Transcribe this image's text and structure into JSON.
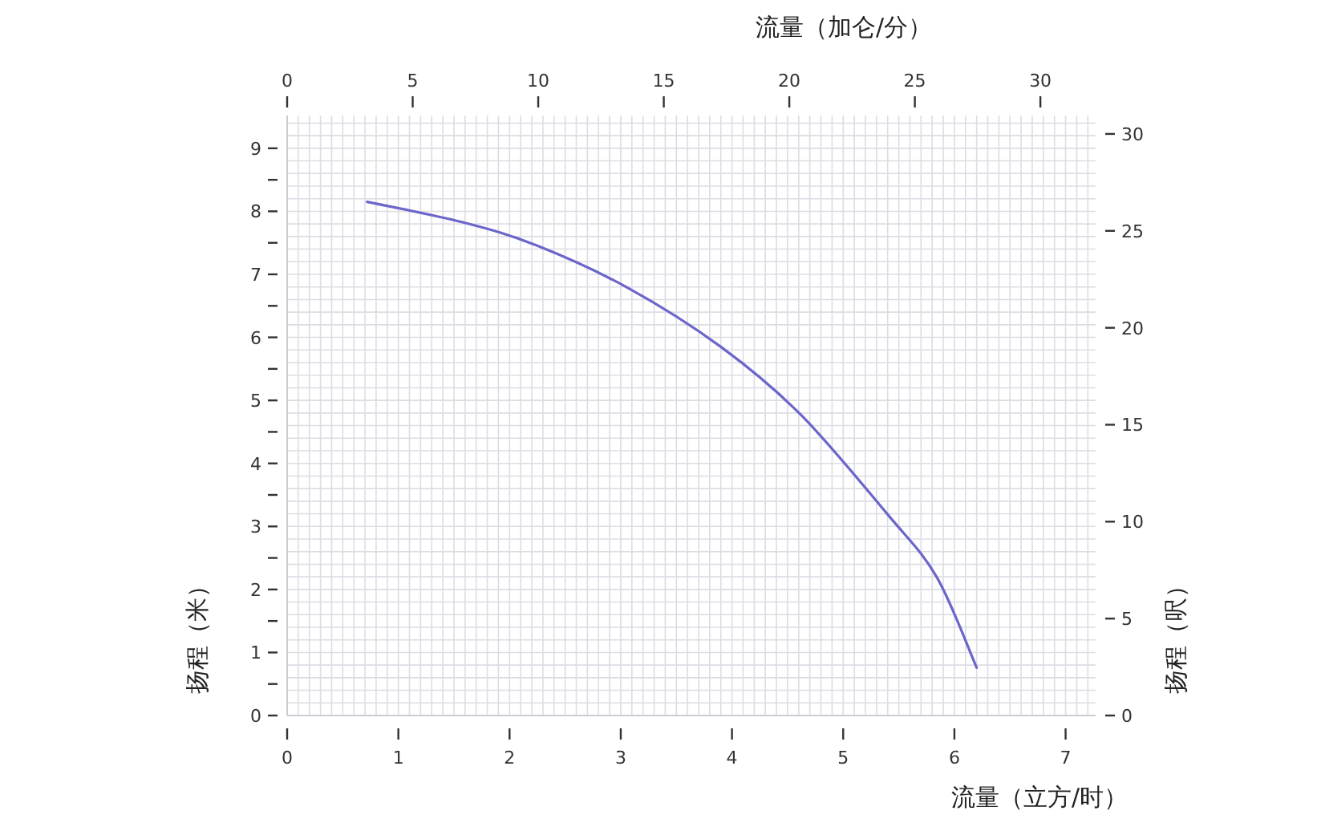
{
  "chart_data": {
    "type": "line",
    "xlabel": "流量（立方/时）",
    "x2label": "流量（加仑/分）",
    "ylabel": "扬程（米）",
    "y2label": "扬程（呎）",
    "xlim": [
      0,
      7.27
    ],
    "xticks": [
      0,
      1,
      2,
      3,
      4,
      5,
      6,
      7
    ],
    "x2lim": [
      0,
      32.2
    ],
    "x2ticks": [
      0,
      5,
      10,
      15,
      20,
      25,
      30
    ],
    "ylim": [
      0,
      9.52
    ],
    "yticks": [
      0,
      {
        "value": 0.5,
        "label": null
      },
      1,
      {
        "value": 1.5,
        "label": null
      },
      2,
      {
        "value": 2.5,
        "label": null
      },
      3,
      {
        "value": 3.5,
        "label": null
      },
      4,
      {
        "value": 4.5,
        "label": null
      },
      5,
      {
        "value": 5.5,
        "label": null
      },
      6,
      {
        "value": 6.5,
        "label": null
      },
      7,
      {
        "value": 7.5,
        "label": null
      },
      8,
      {
        "value": 8.5,
        "label": null
      },
      9
    ],
    "y2lim": [
      0,
      30.95
    ],
    "y2ticks": [
      0,
      5,
      10,
      15,
      20,
      25,
      30
    ],
    "grid": true,
    "marker": "none",
    "line_style": "solid",
    "series": [
      {
        "color": "#6b66c9",
        "x": [
          0.72,
          1.57,
          2.24,
          3.07,
          3.9,
          4.62,
          5.4,
          5.84,
          6.2
        ],
        "values": [
          8.15,
          7.83,
          7.46,
          6.78,
          5.85,
          4.77,
          3.19,
          2.2,
          0.76
        ]
      }
    ]
  }
}
